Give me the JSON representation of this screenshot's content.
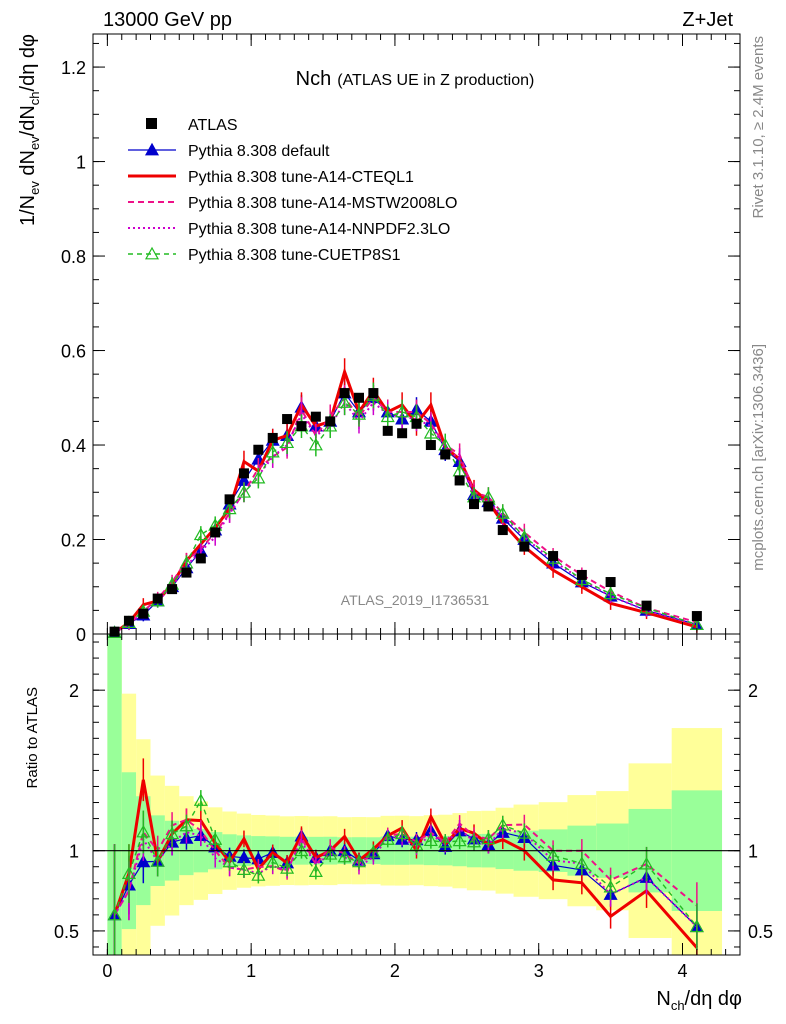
{
  "chart_data": {
    "type": "line",
    "header_left": "13000 GeV pp",
    "header_right": "Z+Jet",
    "title_main": "Nch",
    "title_sub": "(ATLAS UE in Z production)",
    "analysis_tag": "ATLAS_2019_I1736531",
    "side_text_top": "Rivet 3.1.10, ≥ 2.4M events",
    "side_text_bottom": "mcplots.cern.ch [arXiv:1306.3436]",
    "ylabel_main": "1/N_ev dN_ev/dN_ch/dη dφ",
    "ylabel_ratio": "Ratio to ATLAS",
    "xlabel": "N_ch/dη dφ",
    "xlim": [
      -0.1,
      4.4
    ],
    "ylim_main": [
      0,
      1.27
    ],
    "ylim_ratio": [
      0.35,
      2.35
    ],
    "x_ticks": [
      "0",
      "1",
      "2",
      "3",
      "4"
    ],
    "y_ticks_main": [
      "0",
      "0.2",
      "0.4",
      "0.6",
      "0.8",
      "1",
      "1.2"
    ],
    "y_ticks_ratio": [
      "0.5",
      "1",
      "2"
    ],
    "legend": [
      {
        "name": "ATLAS",
        "color": "#000000",
        "style": "marker-square"
      },
      {
        "name": "Pythia 8.308 default",
        "color": "#0000cc",
        "style": "solid-triangle"
      },
      {
        "name": "Pythia 8.308 tune-A14-CTEQL1",
        "color": "#ee0000",
        "style": "solid-thick"
      },
      {
        "name": "Pythia 8.308 tune-A14-MSTW2008LO",
        "color": "#ee1188",
        "style": "dashed"
      },
      {
        "name": "Pythia 8.308 tune-A14-NNPDF2.3LO",
        "color": "#cc00cc",
        "style": "dotted"
      },
      {
        "name": "Pythia 8.308 tune-CUETP8S1",
        "color": "#22bb22",
        "style": "dashed-open-triangle"
      }
    ],
    "x": [
      0.05,
      0.15,
      0.25,
      0.35,
      0.45,
      0.55,
      0.65,
      0.75,
      0.85,
      0.95,
      1.05,
      1.15,
      1.25,
      1.35,
      1.45,
      1.55,
      1.65,
      1.75,
      1.85,
      1.95,
      2.05,
      2.15,
      2.25,
      2.35,
      2.45,
      2.55,
      2.65,
      2.75,
      2.9,
      3.1,
      3.3,
      3.5,
      3.75,
      4.1
    ],
    "data": [
      0.005,
      0.028,
      0.043,
      0.075,
      0.095,
      0.13,
      0.16,
      0.215,
      0.285,
      0.34,
      0.39,
      0.415,
      0.455,
      0.44,
      0.46,
      0.45,
      0.51,
      0.5,
      0.51,
      0.43,
      0.425,
      0.445,
      0.4,
      0.38,
      0.325,
      0.275,
      0.27,
      0.22,
      0.185,
      0.165,
      0.125,
      0.11,
      0.06,
      0.038
    ],
    "series": [
      {
        "name": "Pythia 8.308 default",
        "values": [
          0.003,
          0.022,
          0.04,
          0.07,
          0.1,
          0.14,
          0.175,
          0.22,
          0.275,
          0.325,
          0.37,
          0.41,
          0.42,
          0.48,
          0.44,
          0.45,
          0.51,
          0.47,
          0.5,
          0.47,
          0.455,
          0.475,
          0.45,
          0.39,
          0.365,
          0.295,
          0.28,
          0.245,
          0.2,
          0.15,
          0.11,
          0.08,
          0.05,
          0.02
        ]
      },
      {
        "name": "Pythia 8.308 tune-A14-CTEQL1",
        "values": [
          0.003,
          0.024,
          0.062,
          0.07,
          0.105,
          0.155,
          0.19,
          0.225,
          0.265,
          0.365,
          0.345,
          0.41,
          0.42,
          0.485,
          0.44,
          0.45,
          0.555,
          0.47,
          0.515,
          0.47,
          0.485,
          0.445,
          0.485,
          0.395,
          0.37,
          0.305,
          0.28,
          0.235,
          0.185,
          0.135,
          0.1,
          0.065,
          0.045,
          0.015
        ]
      },
      {
        "name": "Pythia 8.308 tune-A14-MSTW2008LO",
        "values": [
          0.003,
          0.021,
          0.048,
          0.075,
          0.11,
          0.155,
          0.18,
          0.215,
          0.255,
          0.3,
          0.35,
          0.375,
          0.395,
          0.475,
          0.42,
          0.46,
          0.5,
          0.46,
          0.5,
          0.47,
          0.47,
          0.47,
          0.445,
          0.4,
          0.38,
          0.3,
          0.29,
          0.255,
          0.215,
          0.165,
          0.125,
          0.09,
          0.055,
          0.025
        ]
      },
      {
        "name": "Pythia 8.308 tune-A14-NNPDF2.3LO",
        "values": [
          0.003,
          0.021,
          0.046,
          0.07,
          0.1,
          0.145,
          0.175,
          0.205,
          0.255,
          0.3,
          0.335,
          0.375,
          0.4,
          0.465,
          0.42,
          0.44,
          0.49,
          0.45,
          0.49,
          0.465,
          0.46,
          0.455,
          0.44,
          0.395,
          0.37,
          0.29,
          0.28,
          0.25,
          0.205,
          0.155,
          0.115,
          0.08,
          0.05,
          0.02
        ]
      },
      {
        "name": "Pythia 8.308 tune-CUETP8S1",
        "values": [
          0.003,
          0.024,
          0.048,
          0.07,
          0.105,
          0.15,
          0.21,
          0.23,
          0.265,
          0.3,
          0.33,
          0.385,
          0.405,
          0.44,
          0.4,
          0.44,
          0.49,
          0.465,
          0.505,
          0.46,
          0.47,
          0.46,
          0.425,
          0.4,
          0.345,
          0.29,
          0.29,
          0.255,
          0.205,
          0.16,
          0.115,
          0.085,
          0.055,
          0.02
        ]
      }
    ]
  }
}
